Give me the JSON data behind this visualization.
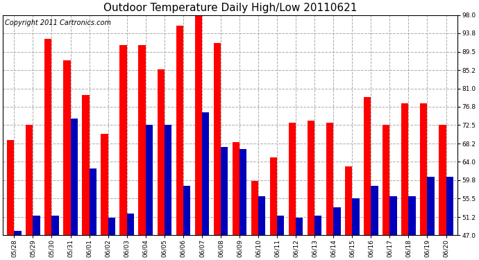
{
  "title": "Outdoor Temperature Daily High/Low 20110621",
  "copyright": "Copyright 2011 Cartronics.com",
  "dates": [
    "05/28",
    "05/29",
    "05/30",
    "05/31",
    "06/01",
    "06/02",
    "06/03",
    "06/04",
    "06/05",
    "06/06",
    "06/07",
    "06/08",
    "06/09",
    "06/10",
    "06/11",
    "06/12",
    "06/13",
    "06/14",
    "06/15",
    "06/16",
    "06/17",
    "06/18",
    "06/19",
    "06/20"
  ],
  "highs": [
    69.0,
    72.5,
    92.5,
    87.5,
    79.5,
    70.5,
    91.0,
    91.0,
    85.5,
    95.5,
    98.0,
    91.5,
    68.5,
    59.5,
    65.0,
    73.0,
    73.5,
    73.0,
    63.0,
    79.0,
    72.5,
    77.5,
    77.5,
    72.5
  ],
  "lows": [
    48.0,
    51.5,
    51.5,
    74.0,
    62.5,
    51.0,
    52.0,
    72.5,
    72.5,
    58.5,
    75.5,
    67.5,
    67.0,
    56.0,
    51.5,
    51.0,
    51.5,
    53.5,
    55.5,
    58.5,
    56.0,
    56.0,
    60.5,
    60.5
  ],
  "high_color": "#ff0000",
  "low_color": "#0000bb",
  "bg_color": "#ffffff",
  "plot_bg_color": "#ffffff",
  "grid_color": "#aaaaaa",
  "ymin": 47.0,
  "ymax": 98.0,
  "yticks": [
    47.0,
    51.2,
    55.5,
    59.8,
    64.0,
    68.2,
    72.5,
    76.8,
    81.0,
    85.2,
    89.5,
    93.8,
    98.0
  ],
  "title_fontsize": 11,
  "copyright_fontsize": 7,
  "tick_fontsize": 6.5,
  "bar_width": 0.38
}
